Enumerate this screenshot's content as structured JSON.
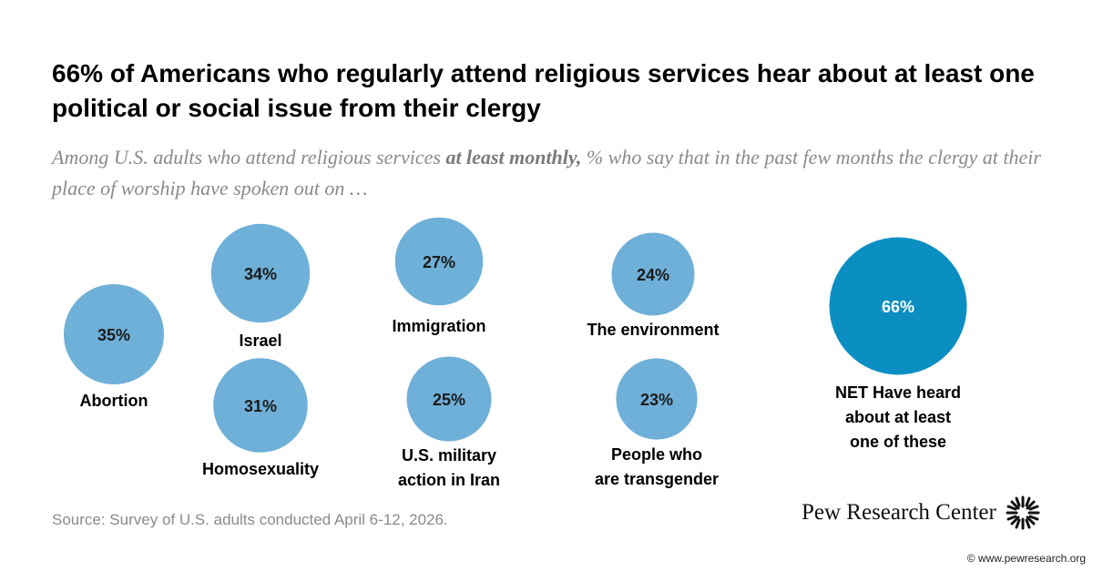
{
  "title": "66% of Americans who regularly attend religious services hear about at least one political or social issue from their clergy",
  "subtitle": {
    "before": "Among U.S. adults who attend religious services ",
    "emphasis": "at least monthly,",
    "after": " % who say that in the past few months the clergy at their place of worship have spoken out on …"
  },
  "chart_data": {
    "type": "bubble",
    "unit": "%",
    "colors": {
      "issue": "#6fb0d8",
      "net": "#0b8fc2",
      "label": "#000000",
      "value": "#1a1a1a"
    },
    "items": [
      {
        "label": "Abortion",
        "value": 35
      },
      {
        "label": "Israel",
        "value": 34
      },
      {
        "label": "Homosexuality",
        "value": 31
      },
      {
        "label": "Immigration",
        "value": 27
      },
      {
        "label": "U.S. military action in Iran",
        "value": 25
      },
      {
        "label": "The environment",
        "value": 24
      },
      {
        "label": "People who are transgender",
        "value": 23
      },
      {
        "label": "NET Have heard about at least one of these",
        "value": 66,
        "net": true
      }
    ]
  },
  "footer": {
    "source": "Source: Survey of U.S. adults conducted April 6-12, 2026.",
    "brand": "Pew Research Center",
    "logo_icon": "pew-starburst-icon",
    "copyright_icon": "copyright-icon",
    "url": "www.pewresearch.org"
  }
}
